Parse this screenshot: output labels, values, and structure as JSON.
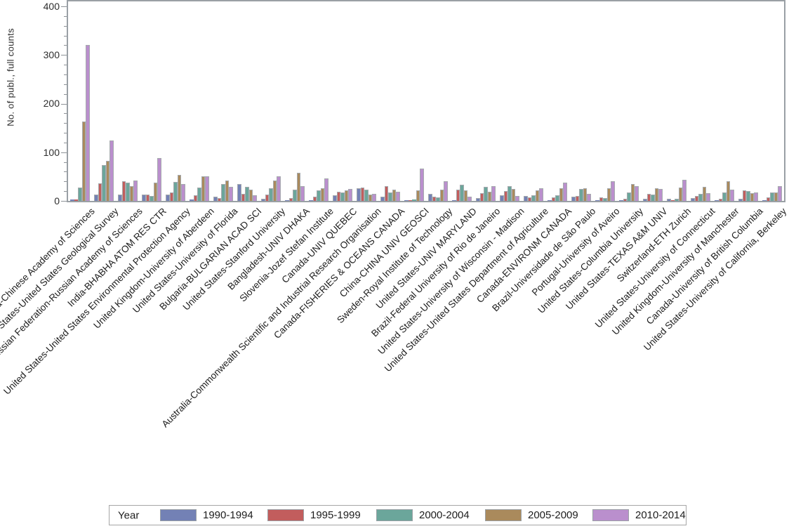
{
  "chart_data": {
    "type": "bar",
    "title": "",
    "xlabel": "",
    "ylabel": "No. of publ., full counts",
    "ylim": [
      0,
      410
    ],
    "y_major_ticks": [
      0,
      100,
      200,
      300,
      400
    ],
    "y_minor_tick_step": 20,
    "grid": false,
    "legend_position": "bottom",
    "legend_title": "Year",
    "frame_color": "#9aa0a5",
    "categories": [
      "China-Chinese Academy of Sciences",
      "United States-United States Geological Survey",
      "Russian Federation-Russian Academy of Sciences",
      "India-BHABHA ATOM RES CTR",
      "United States-United States Environmental Protection Agency",
      "United Kingdom-University of Aberdeen",
      "United States-University of Florida",
      "Bulgaria-BULGARIAN ACAD SCI",
      "United States-Stanford University",
      "Bangladesh-UNIV DHAKA",
      "Slovenia-Jozef Stefan Institute",
      "Canada-UNIV QUEBEC",
      "Australia-Commonwealth Scientific and Industrial Research Organisation",
      "Canada-FISHERIES & OCEANS CANADA",
      "China-CHINA UNIV GEOSCI",
      "Sweden-Royal Institute of Technology",
      "United States-UNIV MARYLAND",
      "Brazil-Federal University of Rio de Janeiro",
      "United States-University of Wisconsin - Madison",
      "United States-United States Department of Agriculture",
      "Canada-ENVIRONM CANADA",
      "Brazil-Universidade de São Paulo",
      "Portugal-University of Aveiro",
      "United States-Columbia University",
      "United States-TEXAS A&M UNIV",
      "Switzerland-ETH Zurich",
      "United States-University of Connecticut",
      "United Kingdom-University of Manchester",
      "Canada-University of British Columbia",
      "United States-University of California, Berkeley"
    ],
    "series": [
      {
        "name": "1990-1994",
        "color": "#7381b5",
        "values": [
          3,
          13,
          13,
          13,
          13,
          3,
          8,
          34,
          4,
          2,
          2,
          11,
          26,
          8,
          1,
          15,
          2,
          6,
          11,
          10,
          1,
          8,
          2,
          1,
          4,
          4,
          6,
          2,
          5,
          2
        ]
      },
      {
        "name": "1995-1999",
        "color": "#c25d5d",
        "values": [
          3,
          36,
          40,
          13,
          17,
          12,
          6,
          15,
          13,
          6,
          9,
          19,
          28,
          30,
          1,
          9,
          23,
          16,
          20,
          7,
          7,
          10,
          7,
          4,
          14,
          1,
          10,
          4,
          22,
          7
        ]
      },
      {
        "name": "2000-2004",
        "color": "#6ba69b",
        "values": [
          27,
          74,
          38,
          10,
          39,
          28,
          35,
          29,
          26,
          23,
          22,
          17,
          23,
          17,
          3,
          7,
          33,
          29,
          31,
          12,
          11,
          24,
          6,
          17,
          13,
          4,
          14,
          17,
          20,
          18
        ]
      },
      {
        "name": "2005-2009",
        "color": "#aa8a5c",
        "values": [
          163,
          83,
          31,
          37,
          53,
          51,
          42,
          23,
          42,
          58,
          26,
          22,
          13,
          23,
          21,
          23,
          22,
          19,
          24,
          22,
          26,
          26,
          26,
          35,
          26,
          27,
          29,
          41,
          16,
          18
        ]
      },
      {
        "name": "2010-2014",
        "color": "#ba8fcd",
        "values": [
          320,
          124,
          42,
          88,
          35,
          50,
          29,
          12,
          50,
          30,
          46,
          25,
          14,
          19,
          67,
          41,
          8,
          31,
          10,
          26,
          38,
          14,
          41,
          30,
          25,
          43,
          16,
          23,
          17,
          31
        ]
      }
    ]
  }
}
